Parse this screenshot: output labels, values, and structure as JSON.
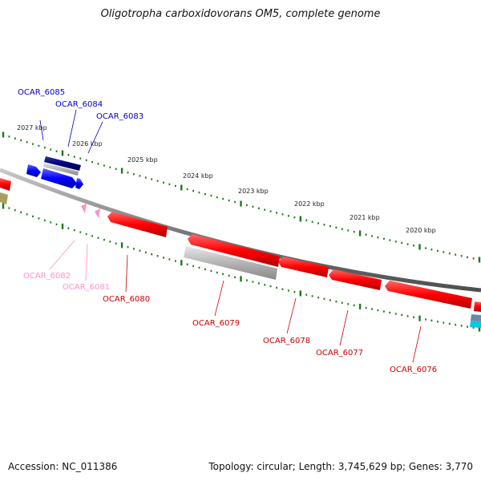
{
  "title": "Oligotropha carboxidovorans OM5, complete genome",
  "accession": "Accession: NC_011386",
  "summary": "Topology: circular; Length: 3,745,629 bp; Genes: 3,770",
  "colors": {
    "backbone": "#8c8c8c",
    "ticks": "#1a7a1a",
    "red": "#ff0000",
    "blue": "#0000ff",
    "navy": "#000080",
    "pink": "#ff8fc8",
    "gray": "#b4b4b4",
    "olive": "#a8a060",
    "cyan": "#00c8e0"
  },
  "kbp_labels": [
    "2027 kbp",
    "2026 kbp",
    "2025 kbp",
    "2024 kbp",
    "2023 kbp",
    "2022 kbp",
    "2021 kbp",
    "2020 kbp"
  ],
  "genes": [
    {
      "id": "g6085",
      "label": "OCAR_6085",
      "color": "blue"
    },
    {
      "id": "g6084",
      "label": "OCAR_6084",
      "color": "blue"
    },
    {
      "id": "g6083",
      "label": "OCAR_6083",
      "color": "blue"
    },
    {
      "id": "g6082",
      "label": "OCAR_6082",
      "color": "pink"
    },
    {
      "id": "g6081",
      "label": "OCAR_6081",
      "color": "pink"
    },
    {
      "id": "g6080",
      "label": "OCAR_6080",
      "color": "red"
    },
    {
      "id": "g6079",
      "label": "OCAR_6079",
      "color": "red"
    },
    {
      "id": "g6078",
      "label": "OCAR_6078",
      "color": "red"
    },
    {
      "id": "g6077",
      "label": "OCAR_6077",
      "color": "red"
    },
    {
      "id": "g6076",
      "label": "OCAR_6076",
      "color": "red"
    }
  ]
}
